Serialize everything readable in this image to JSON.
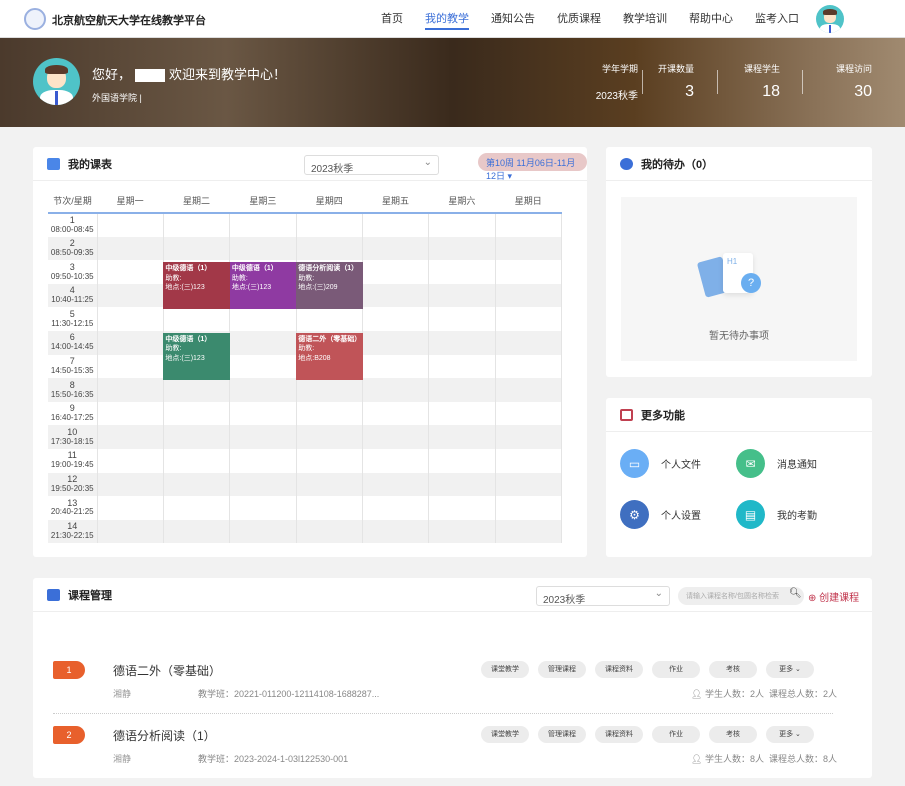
{
  "header": {
    "brand": "北京航空航天大学在线教学平台",
    "nav": [
      "首页",
      "我的教学",
      "通知公告",
      "优质课程",
      "教学培训",
      "帮助中心",
      "监考入口"
    ],
    "active_nav": 1
  },
  "banner": {
    "greeting_prefix": "您好，",
    "greeting_suffix": "欢迎来到教学中心！",
    "department": "外国语学院 |",
    "stats": [
      {
        "label": "学年学期",
        "value": "2023秋季"
      },
      {
        "label": "开课数量",
        "value": "3"
      },
      {
        "label": "课程学生",
        "value": "18"
      },
      {
        "label": "课程访问",
        "value": "30"
      }
    ]
  },
  "schedule": {
    "title": "我的课表",
    "term": "2023秋季",
    "week": "第10周 11月06日-11月12日 ▾",
    "headers": [
      "节次/星期",
      "星期一",
      "星期二",
      "星期三",
      "星期四",
      "星期五",
      "星期六",
      "星期日"
    ],
    "periods": [
      {
        "n": "1",
        "t": "08:00-08:45"
      },
      {
        "n": "2",
        "t": "08:50-09:35"
      },
      {
        "n": "3",
        "t": "09:50-10:35"
      },
      {
        "n": "4",
        "t": "10:40-11:25"
      },
      {
        "n": "5",
        "t": "11:30-12:15"
      },
      {
        "n": "6",
        "t": "14:00-14:45"
      },
      {
        "n": "7",
        "t": "14:50-15:35"
      },
      {
        "n": "8",
        "t": "15:50-16:35"
      },
      {
        "n": "9",
        "t": "16:40-17:25"
      },
      {
        "n": "10",
        "t": "17:30-18:15"
      },
      {
        "n": "11",
        "t": "19:00-19:45"
      },
      {
        "n": "12",
        "t": "19:50-20:35"
      },
      {
        "n": "13",
        "t": "20:40-21:25"
      },
      {
        "n": "14",
        "t": "21:30-22:15"
      }
    ],
    "courses": [
      {
        "name": "中级德语（1）",
        "assistant": "助教:",
        "location": "地点:(三)123",
        "day": 2,
        "start": 3,
        "end": 4,
        "color": "#a23848"
      },
      {
        "name": "中级德语（1）",
        "assistant": "助教:",
        "location": "地点:(三)123",
        "day": 3,
        "start": 3,
        "end": 4,
        "color": "#8f3aa2"
      },
      {
        "name": "德语分析阅读（1）",
        "assistant": "助教:",
        "location": "地点:(三)209",
        "day": 4,
        "start": 3,
        "end": 4,
        "color": "#7a5a78"
      },
      {
        "name": "中级德语（1）",
        "assistant": "助教:",
        "location": "地点:(三)123",
        "day": 2,
        "start": 6,
        "end": 7,
        "color": "#3b8a6e"
      },
      {
        "name": "德语二外（零基础）",
        "assistant": "助教:",
        "location": "地点:B208",
        "day": 4,
        "start": 6,
        "end": 7,
        "color": "#c05458"
      }
    ]
  },
  "todo": {
    "title": "我的待办（0）",
    "empty": "暂无待办事项"
  },
  "more": {
    "title": "更多功能",
    "items": [
      {
        "label": "个人文件",
        "icon": "folder-icon",
        "color": "#6aaef5",
        "glyph": "▭"
      },
      {
        "label": "消息通知",
        "icon": "mail-icon",
        "color": "#45bf8a",
        "glyph": "✉"
      },
      {
        "label": "个人设置",
        "icon": "gear-icon",
        "color": "#3f6fc0",
        "glyph": "⚙"
      },
      {
        "label": "我的考勤",
        "icon": "basket-icon",
        "color": "#20b8c8",
        "glyph": "▤"
      }
    ]
  },
  "courses": {
    "title": "课程管理",
    "term": "2023秋季",
    "search_placeholder": "请输入课程名称/包圆名称检索",
    "create": "⊕ 创建课程",
    "actions": [
      "课堂教学",
      "管理课程",
      "课程资料",
      "作业",
      "考核",
      "更多 ⌄"
    ],
    "list": [
      {
        "index": "1",
        "name": "德语二外（零基础）",
        "teacher": "湘静",
        "class": "教学班：20221-011200-12114108-1688287...",
        "students": "学生人数：2人",
        "total": "课程总人数：2人"
      },
      {
        "index": "2",
        "name": "德语分析阅读（1）",
        "teacher": "湘静",
        "class": "教学班：2023-2024-1-03l122530-001",
        "students": "学生人数：8人",
        "total": "课程总人数：8人"
      }
    ]
  }
}
